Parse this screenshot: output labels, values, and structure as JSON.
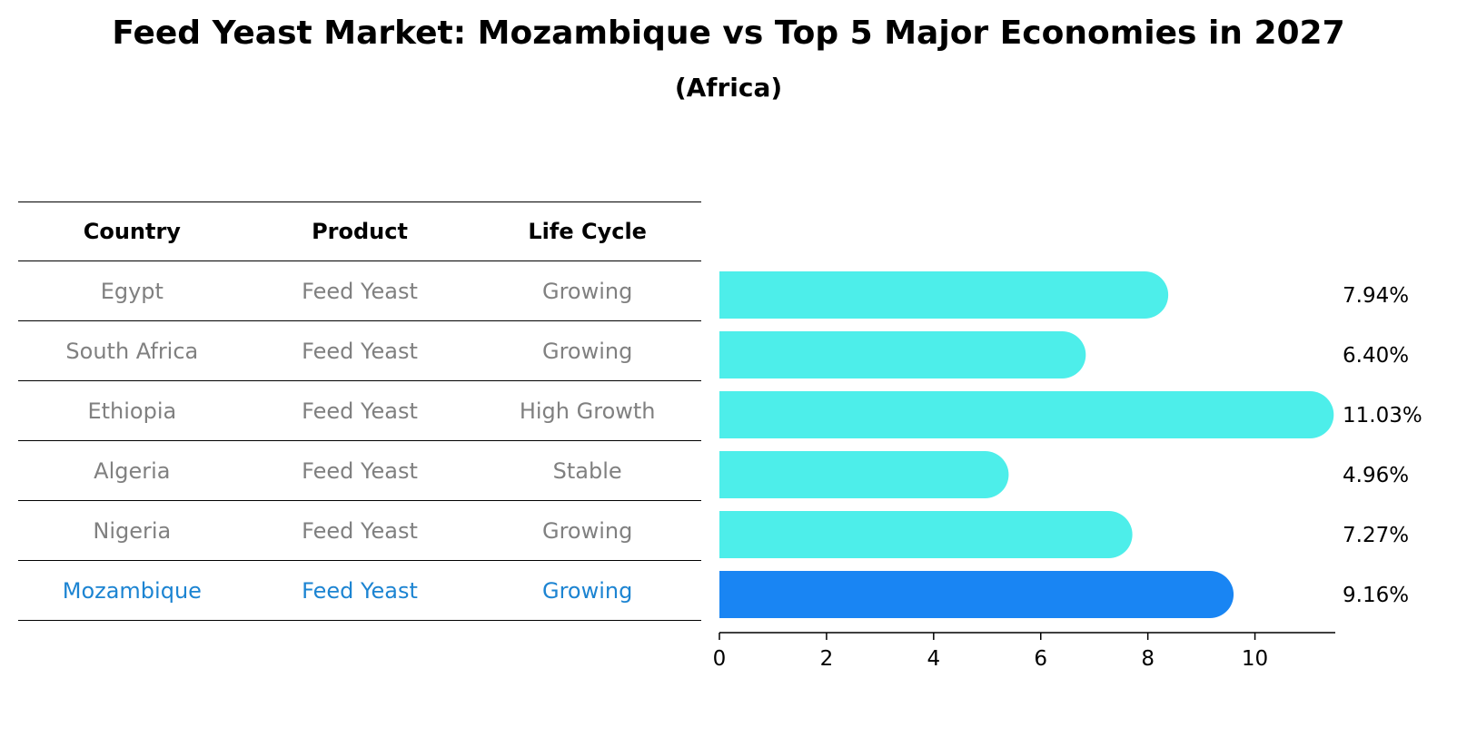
{
  "title": "Feed Yeast Market: Mozambique vs Top 5 Major Economies in 2027",
  "subtitle": "(Africa)",
  "table": {
    "headers": [
      "Country",
      "Product",
      "Life Cycle"
    ],
    "rows": [
      [
        "Egypt",
        "Feed Yeast",
        "Growing"
      ],
      [
        "South Africa",
        "Feed Yeast",
        "Growing"
      ],
      [
        "Ethiopia",
        "Feed Yeast",
        "High Growth"
      ],
      [
        "Algeria",
        "Feed Yeast",
        "Stable"
      ],
      [
        "Nigeria",
        "Feed Yeast",
        "Growing"
      ],
      [
        "Mozambique",
        "Feed Yeast",
        "Growing"
      ]
    ],
    "highlight_row": 5
  },
  "colors": {
    "bar": "#4deeea",
    "highlight_bar": "#1985f3",
    "highlight_text": "#1c84d2",
    "muted_text": "#808080"
  },
  "chart_data": {
    "type": "bar",
    "orientation": "horizontal",
    "categories": [
      "Egypt",
      "South Africa",
      "Ethiopia",
      "Algeria",
      "Nigeria",
      "Mozambique"
    ],
    "values": [
      7.94,
      6.4,
      11.03,
      4.96,
      7.27,
      9.16
    ],
    "labels": [
      "7.94%",
      "6.40%",
      "11.03%",
      "4.96%",
      "7.27%",
      "9.16%"
    ],
    "highlight": "Mozambique",
    "xlim": [
      0,
      11.5
    ],
    "xticks": [
      0,
      2,
      4,
      6,
      8,
      10
    ],
    "grid": false
  }
}
